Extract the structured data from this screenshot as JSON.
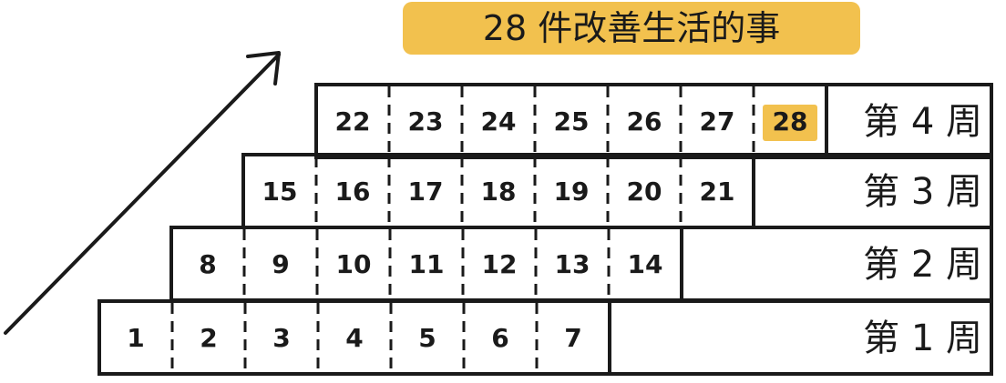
{
  "title": "28 件改善生活的事",
  "colors": {
    "ink": "#1a1a1a",
    "highlight": "#f2c14e",
    "background": "#ffffff"
  },
  "arrow": {
    "direction": "up-right"
  },
  "weeks": [
    {
      "label": "第 1 周",
      "days": [
        "1",
        "2",
        "3",
        "4",
        "5",
        "6",
        "7"
      ]
    },
    {
      "label": "第 2 周",
      "days": [
        "8",
        "9",
        "10",
        "11",
        "12",
        "13",
        "14"
      ]
    },
    {
      "label": "第 3 周",
      "days": [
        "15",
        "16",
        "17",
        "18",
        "19",
        "20",
        "21"
      ]
    },
    {
      "label": "第 4 周",
      "days": [
        "22",
        "23",
        "24",
        "25",
        "26",
        "27",
        "28"
      ]
    }
  ],
  "highlighted_day": "28"
}
